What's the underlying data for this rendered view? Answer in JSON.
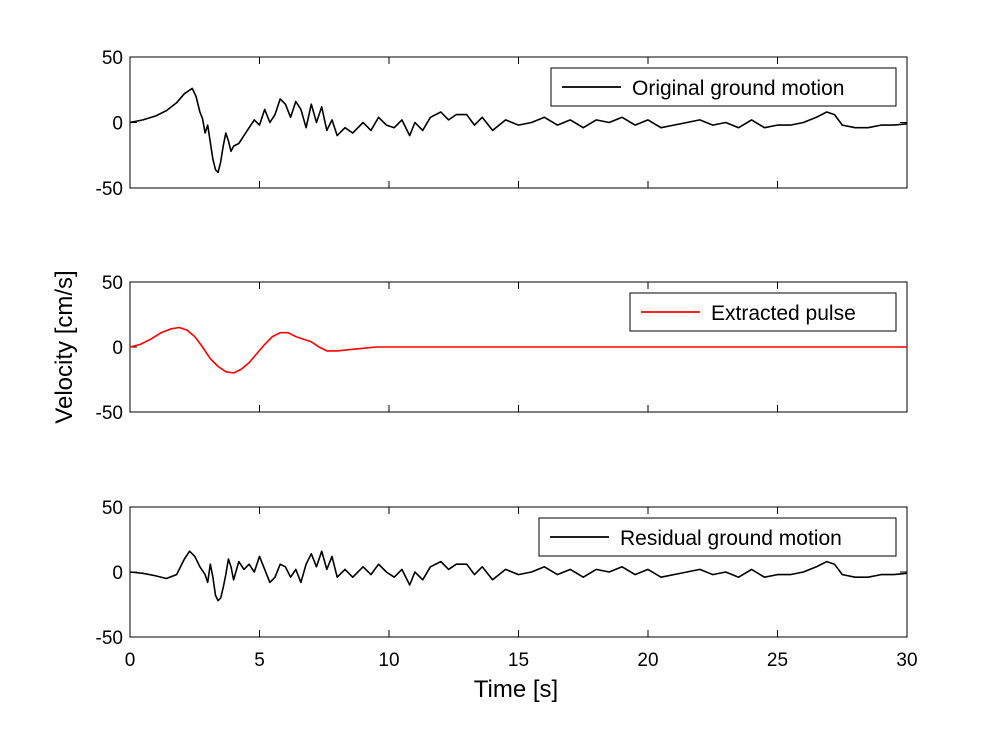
{
  "figure": {
    "ylabel": "Velocity [cm/s]",
    "xlabel": "Time [s]"
  },
  "chart_data": [
    {
      "type": "line",
      "legend_placement": "top-right",
      "grid": false,
      "xlim": [
        0,
        30
      ],
      "ylim": [
        -50,
        50
      ],
      "x_ticks": [
        "0",
        "5",
        "10",
        "15",
        "20",
        "25",
        "30"
      ],
      "y_ticks": [
        "50",
        "0",
        "-50"
      ],
      "show_x_ticklabels": false,
      "series": [
        {
          "name": "Original ground motion",
          "color": "#000000",
          "x": [
            0,
            0.5,
            1.0,
            1.4,
            1.8,
            2.1,
            2.4,
            2.55,
            2.7,
            2.8,
            2.9,
            3.0,
            3.1,
            3.2,
            3.3,
            3.4,
            3.5,
            3.6,
            3.7,
            3.8,
            3.9,
            4.0,
            4.2,
            4.4,
            4.6,
            4.8,
            5.0,
            5.2,
            5.4,
            5.6,
            5.8,
            6.0,
            6.2,
            6.4,
            6.6,
            6.8,
            7.0,
            7.2,
            7.4,
            7.6,
            7.8,
            8.0,
            8.3,
            8.6,
            9.0,
            9.3,
            9.6,
            9.9,
            10.2,
            10.5,
            10.8,
            11.0,
            11.3,
            11.6,
            12.0,
            12.3,
            12.6,
            13.0,
            13.3,
            13.6,
            14.0,
            14.5,
            15.0,
            15.5,
            16.0,
            16.5,
            17.0,
            17.5,
            18.0,
            18.5,
            19.0,
            19.5,
            20.0,
            20.5,
            21.0,
            21.5,
            22.0,
            22.5,
            23.0,
            23.5,
            24.0,
            24.5,
            25.0,
            25.5,
            26.0,
            26.5,
            26.9,
            27.2,
            27.5,
            28.0,
            28.5,
            29.0,
            29.5,
            30.0
          ],
          "y": [
            0,
            2,
            5,
            9,
            15,
            22,
            26,
            20,
            8,
            3,
            -8,
            -2,
            -15,
            -28,
            -36,
            -38,
            -30,
            -18,
            -8,
            -14,
            -22,
            -18,
            -16,
            -10,
            -4,
            2,
            -2,
            10,
            0,
            6,
            18,
            14,
            4,
            16,
            10,
            -4,
            14,
            0,
            12,
            -6,
            2,
            -10,
            -4,
            -8,
            0,
            -6,
            4,
            -2,
            -4,
            2,
            -10,
            0,
            -6,
            4,
            8,
            2,
            6,
            6,
            -2,
            4,
            -6,
            2,
            -2,
            0,
            4,
            -2,
            2,
            -4,
            2,
            0,
            4,
            -2,
            2,
            -4,
            -2,
            0,
            2,
            -2,
            0,
            -4,
            2,
            -4,
            -2,
            -2,
            0,
            4,
            8,
            6,
            -2,
            -4,
            -4,
            -2,
            -2,
            -1
          ]
        }
      ]
    },
    {
      "type": "line",
      "legend_placement": "top-right",
      "grid": false,
      "xlim": [
        0,
        30
      ],
      "ylim": [
        -50,
        50
      ],
      "x_ticks": [
        "0",
        "5",
        "10",
        "15",
        "20",
        "25",
        "30"
      ],
      "y_ticks": [
        "50",
        "0",
        "-50"
      ],
      "show_x_ticklabels": false,
      "series": [
        {
          "name": "Extracted pulse",
          "color": "#ff0000",
          "x": [
            0,
            0.4,
            0.8,
            1.2,
            1.6,
            1.9,
            2.2,
            2.5,
            2.8,
            3.1,
            3.4,
            3.7,
            4.0,
            4.3,
            4.6,
            4.9,
            5.2,
            5.5,
            5.8,
            6.1,
            6.4,
            6.7,
            7.0,
            7.3,
            7.6,
            8.0,
            8.5,
            9.0,
            9.5,
            10.0,
            11.0,
            12.0,
            13.0,
            14.0,
            15.0,
            16.0,
            17.0,
            18.0,
            20.0,
            22.0,
            25.0,
            28.0,
            30.0
          ],
          "y": [
            0,
            2,
            6,
            11,
            14,
            15,
            13,
            8,
            0,
            -9,
            -15,
            -19,
            -20,
            -17,
            -12,
            -5,
            2,
            8,
            11,
            11,
            8,
            6,
            4,
            0,
            -3,
            -3,
            -2,
            -1,
            0,
            0,
            0,
            0,
            0,
            0,
            0,
            0,
            0,
            0,
            0,
            0,
            0,
            0,
            0
          ]
        }
      ]
    },
    {
      "type": "line",
      "legend_placement": "top-right",
      "grid": false,
      "xlim": [
        0,
        30
      ],
      "ylim": [
        -50,
        50
      ],
      "x_ticks": [
        "0",
        "5",
        "10",
        "15",
        "20",
        "25",
        "30"
      ],
      "y_ticks": [
        "50",
        "0",
        "-50"
      ],
      "show_x_ticklabels": true,
      "series": [
        {
          "name": "Residual ground motion",
          "color": "#000000",
          "x": [
            0,
            0.5,
            1.0,
            1.4,
            1.8,
            2.1,
            2.3,
            2.5,
            2.7,
            2.9,
            3.0,
            3.1,
            3.2,
            3.3,
            3.4,
            3.5,
            3.6,
            3.7,
            3.8,
            3.9,
            4.0,
            4.2,
            4.4,
            4.6,
            4.8,
            5.0,
            5.2,
            5.4,
            5.6,
            5.8,
            6.0,
            6.2,
            6.4,
            6.6,
            6.8,
            7.0,
            7.2,
            7.4,
            7.6,
            7.8,
            8.0,
            8.3,
            8.6,
            9.0,
            9.3,
            9.6,
            9.9,
            10.2,
            10.5,
            10.8,
            11.0,
            11.3,
            11.6,
            12.0,
            12.3,
            12.6,
            13.0,
            13.3,
            13.6,
            14.0,
            14.5,
            15.0,
            15.5,
            16.0,
            16.5,
            17.0,
            17.5,
            18.0,
            18.5,
            19.0,
            19.5,
            20.0,
            20.5,
            21.0,
            21.5,
            22.0,
            22.5,
            23.0,
            23.5,
            24.0,
            24.5,
            25.0,
            25.5,
            26.0,
            26.5,
            26.9,
            27.2,
            27.5,
            28.0,
            28.5,
            29.0,
            29.5,
            30.0
          ],
          "y": [
            0,
            -1,
            -3,
            -5,
            -2,
            10,
            16,
            12,
            4,
            -2,
            -8,
            6,
            -4,
            -18,
            -22,
            -20,
            -12,
            -2,
            10,
            4,
            -6,
            8,
            2,
            6,
            0,
            12,
            2,
            -8,
            -4,
            6,
            4,
            -4,
            2,
            -8,
            6,
            14,
            4,
            16,
            2,
            12,
            -4,
            2,
            -4,
            4,
            -2,
            6,
            0,
            -4,
            2,
            -10,
            0,
            -6,
            4,
            8,
            2,
            6,
            6,
            -2,
            4,
            -6,
            2,
            -2,
            0,
            4,
            -2,
            2,
            -4,
            2,
            0,
            4,
            -2,
            2,
            -4,
            -2,
            0,
            2,
            -2,
            0,
            -4,
            2,
            -4,
            -2,
            -2,
            0,
            4,
            8,
            6,
            -2,
            -4,
            -4,
            -2,
            -2,
            -1
          ]
        }
      ]
    }
  ]
}
